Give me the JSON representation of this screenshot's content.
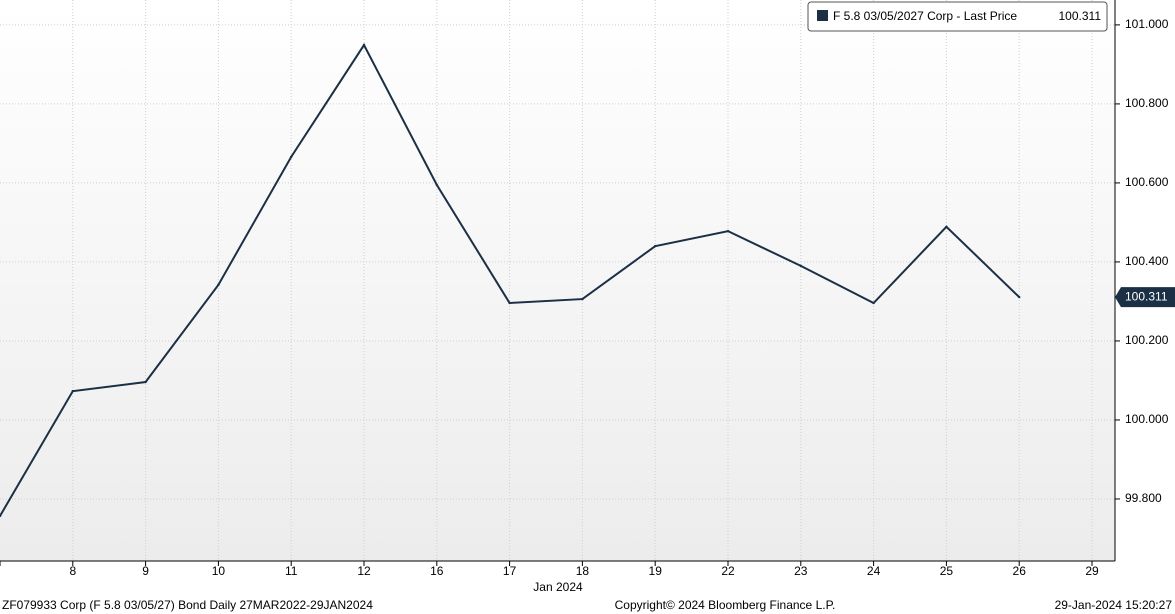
{
  "chart_data": {
    "type": "line",
    "categories": [
      null,
      "8",
      "9",
      "10",
      "11",
      "12",
      "16",
      "17",
      "18",
      "19",
      "22",
      "23",
      "24",
      "25",
      "26",
      "29"
    ],
    "x_label": "Jan 2024",
    "series": [
      {
        "name": "F 5.8 03/05/2027 Corp - Last Price",
        "color": "#1b2f45",
        "values": [
          99.757,
          100.073,
          100.096,
          100.342,
          100.666,
          100.949,
          100.595,
          100.296,
          100.306,
          100.44,
          100.478,
          100.39,
          100.296,
          100.489,
          100.311,
          null
        ]
      }
    ],
    "ylim": [
      99.643,
      101.063
    ],
    "yticks": [
      {
        "value": 99.8,
        "label": "99.800"
      },
      {
        "value": 100.0,
        "label": "100.000"
      },
      {
        "value": 100.2,
        "label": "100.200"
      },
      {
        "value": 100.4,
        "label": "100.400"
      },
      {
        "value": 100.6,
        "label": "100.600"
      },
      {
        "value": 100.8,
        "label": "100.800"
      },
      {
        "value": 101.0,
        "label": "101.000"
      }
    ],
    "grid": true,
    "footer_left": "ZF079933 Corp (F 5.8 03/05/27) Bond  Daily 27MAR2022-29JAN2024",
    "footer_center": "Copyright© 2024 Bloomberg Finance L.P.",
    "footer_right": "29-Jan-2024 15:20:27"
  }
}
